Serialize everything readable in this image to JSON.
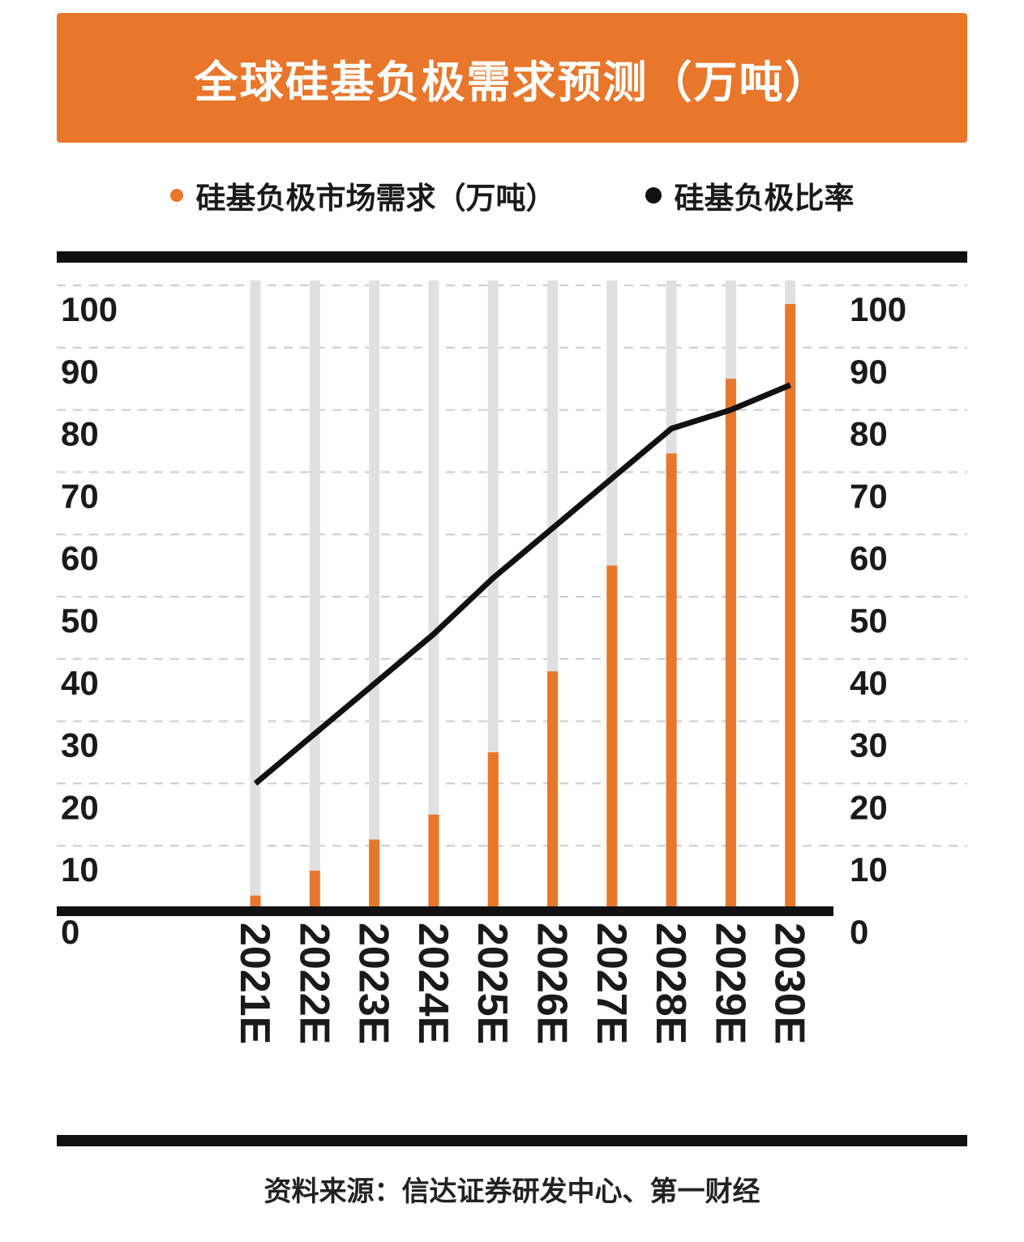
{
  "header": {
    "title": "全球硅基负极需求预测（万吨）"
  },
  "legend": {
    "items": [
      {
        "label": "硅基负极市场需求（万吨）",
        "color": "#e8762b"
      },
      {
        "label": "硅基负极比率",
        "color": "#111111"
      }
    ]
  },
  "footer": {
    "source_label": "资料来源：信达证券研发中心、第一财经"
  },
  "colors": {
    "banner": "#e8762b",
    "bar": "#e8762b",
    "line": "#111111",
    "bg_bar": "#e0e0e0",
    "grid": "#cccccc",
    "axis": "#111111",
    "text": "#1a1a1a"
  },
  "chart_data": {
    "type": "bar",
    "title": "全球硅基负极需求预测（万吨）",
    "categories": [
      "2021E",
      "2022E",
      "2023E",
      "2024E",
      "2025E",
      "2026E",
      "2027E",
      "2028E",
      "2029E",
      "2030E"
    ],
    "series": [
      {
        "name": "硅基负极市场需求（万吨）",
        "type": "bar",
        "color": "#e8762b",
        "axis": "left",
        "values": [
          2,
          6,
          11,
          15,
          25,
          38,
          55,
          73,
          85,
          97
        ]
      },
      {
        "name": "硅基负极比率",
        "type": "line",
        "color": "#111111",
        "axis": "right",
        "values": [
          20,
          28,
          36,
          44,
          53,
          61,
          69,
          77,
          80,
          84
        ]
      }
    ],
    "y_axis": {
      "min": 0,
      "max": 100,
      "ticks": [
        0,
        10,
        20,
        30,
        40,
        50,
        60,
        70,
        80,
        90,
        100
      ],
      "sides": [
        "left",
        "right"
      ]
    },
    "grid": "dashed-horizontal",
    "background_bars": true,
    "legend_position": "top"
  }
}
